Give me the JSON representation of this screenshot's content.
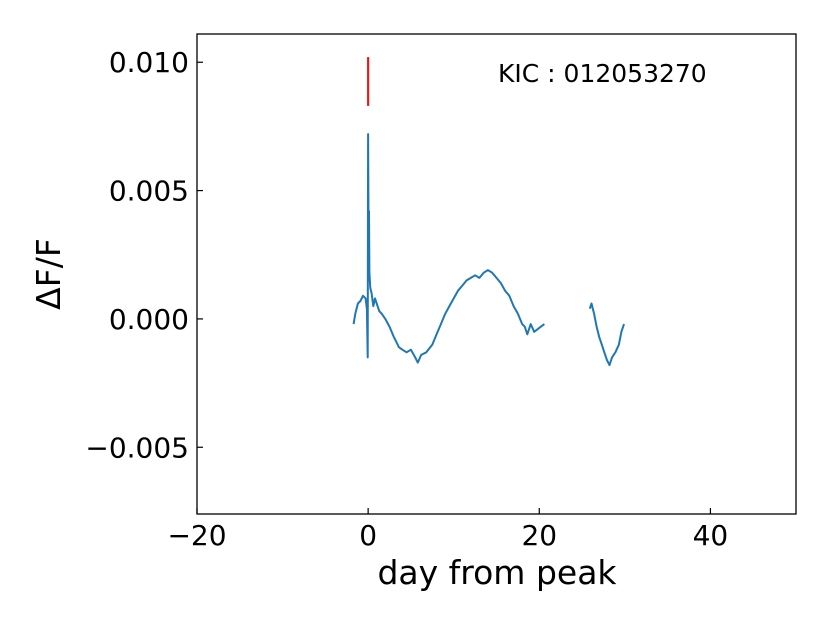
{
  "chart_data": {
    "type": "line",
    "title": "",
    "xlabel": "day from peak",
    "ylabel": "ΔF/F",
    "xlim": [
      -20,
      50
    ],
    "ylim": [
      -0.0076,
      0.0111
    ],
    "xticks": [
      -20,
      0,
      20,
      40
    ],
    "xtick_labels": [
      "−20",
      "0",
      "20",
      "40"
    ],
    "yticks": [
      -0.005,
      0.0,
      0.005,
      0.01
    ],
    "ytick_labels": [
      "−0.005",
      "0.000",
      "0.005",
      "0.010"
    ],
    "grid": false,
    "legend": "none",
    "annotation": "KIC : 012053270",
    "colors": {
      "series": "#1f77b4",
      "marker": "#e41a1c"
    },
    "series": [
      {
        "segments": [
          [
            [
              -1.7,
              -0.0002
            ],
            [
              -1.5,
              0.0002
            ],
            [
              -1.2,
              0.0006
            ],
            [
              -0.9,
              0.0007
            ],
            [
              -0.6,
              0.0009
            ],
            [
              -0.3,
              0.0008
            ],
            [
              -0.15,
              0.0004
            ],
            [
              -0.05,
              -0.0015
            ],
            [
              0.0,
              0.0072
            ],
            [
              0.05,
              0.003
            ],
            [
              0.1,
              0.0042
            ],
            [
              0.15,
              0.0018
            ],
            [
              0.25,
              0.0012
            ],
            [
              0.4,
              0.001
            ],
            [
              0.6,
              0.0005
            ],
            [
              0.8,
              0.0008
            ],
            [
              1.0,
              0.0006
            ],
            [
              1.3,
              0.0003
            ],
            [
              1.6,
              0.0002
            ],
            [
              2.0,
              0.0
            ],
            [
              2.5,
              -0.0003
            ],
            [
              3.0,
              -0.0007
            ],
            [
              3.3,
              -0.0009
            ],
            [
              3.6,
              -0.0011
            ],
            [
              4.0,
              -0.0012
            ],
            [
              4.5,
              -0.0013
            ],
            [
              5.0,
              -0.0012
            ],
            [
              5.5,
              -0.0015
            ],
            [
              5.8,
              -0.0017
            ],
            [
              6.2,
              -0.0014
            ],
            [
              6.8,
              -0.0013
            ],
            [
              7.5,
              -0.001
            ],
            [
              8.0,
              -0.0006
            ],
            [
              8.5,
              -0.0002
            ],
            [
              9.0,
              0.0002
            ],
            [
              9.5,
              0.0005
            ],
            [
              10.0,
              0.0008
            ],
            [
              10.5,
              0.0011
            ],
            [
              11.0,
              0.0013
            ],
            [
              11.5,
              0.0015
            ],
            [
              12.0,
              0.0016
            ],
            [
              12.5,
              0.0017
            ],
            [
              13.0,
              0.0016
            ],
            [
              13.5,
              0.0018
            ],
            [
              14.0,
              0.0019
            ],
            [
              14.5,
              0.0018
            ],
            [
              15.0,
              0.0016
            ],
            [
              15.5,
              0.0014
            ],
            [
              16.0,
              0.0011
            ],
            [
              16.5,
              0.0009
            ],
            [
              17.0,
              0.0005
            ],
            [
              17.5,
              0.0002
            ],
            [
              18.0,
              -0.0002
            ],
            [
              18.3,
              -0.0003
            ],
            [
              18.6,
              -0.0006
            ],
            [
              19.0,
              -0.0002
            ],
            [
              19.4,
              -0.0005
            ],
            [
              19.8,
              -0.0004
            ],
            [
              20.2,
              -0.0003
            ],
            [
              20.6,
              -0.0002
            ]
          ],
          [
            [
              25.9,
              0.0004
            ],
            [
              26.1,
              0.0006
            ],
            [
              26.4,
              0.0002
            ],
            [
              26.7,
              -0.0003
            ],
            [
              27.0,
              -0.0007
            ],
            [
              27.3,
              -0.001
            ],
            [
              27.6,
              -0.0013
            ],
            [
              27.9,
              -0.0016
            ],
            [
              28.2,
              -0.0018
            ],
            [
              28.5,
              -0.0015
            ],
            [
              28.9,
              -0.0013
            ],
            [
              29.3,
              -0.001
            ],
            [
              29.6,
              -0.0005
            ],
            [
              29.9,
              -0.0002
            ]
          ]
        ]
      }
    ],
    "marker_line": {
      "x": 0.0,
      "y0": 0.0083,
      "y1": 0.0102
    }
  }
}
